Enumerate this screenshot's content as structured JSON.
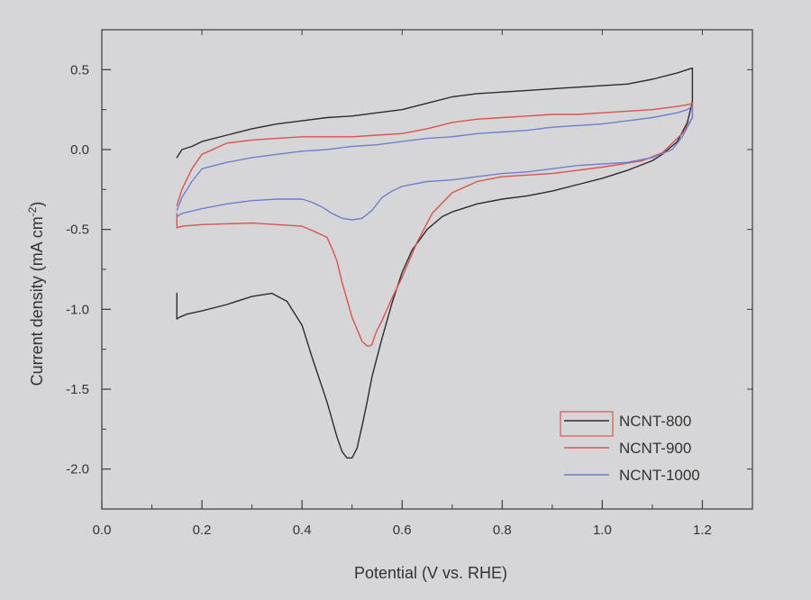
{
  "chart_data": {
    "type": "line",
    "xlabel": "Potential (V vs. RHE)",
    "ylabel": "Current density (mA cm",
    "ylabel_sup": "-2",
    "ylabel_end": ")",
    "xlim": [
      0.0,
      1.3
    ],
    "ylim": [
      -2.25,
      0.75
    ],
    "xticks": [
      0.0,
      0.2,
      0.4,
      0.6,
      0.8,
      1.0,
      1.2
    ],
    "xtick_labels": [
      "0.0",
      "0.2",
      "0.4",
      "0.6",
      "0.8",
      "1.0",
      "1.2"
    ],
    "yticks": [
      0.5,
      0.0,
      -0.5,
      -1.0,
      -1.5,
      -2.0
    ],
    "ytick_labels": [
      "0.5",
      "0.0",
      "-0.5",
      "-1.0",
      "-1.5",
      "-2.0"
    ],
    "grid": false,
    "legend_position": "bottom-right",
    "series": [
      {
        "name": "NCNT-800",
        "color": "#2b2b2b",
        "x": [
          0.15,
          0.16,
          0.18,
          0.2,
          0.25,
          0.3,
          0.35,
          0.4,
          0.45,
          0.5,
          0.55,
          0.6,
          0.65,
          0.7,
          0.75,
          0.8,
          0.85,
          0.9,
          0.95,
          1.0,
          1.05,
          1.1,
          1.15,
          1.17,
          1.18,
          1.18,
          1.17,
          1.15,
          1.12,
          1.1,
          1.05,
          1.0,
          0.95,
          0.9,
          0.85,
          0.8,
          0.75,
          0.7,
          0.68,
          0.65,
          0.62,
          0.6,
          0.58,
          0.56,
          0.54,
          0.53,
          0.52,
          0.51,
          0.5,
          0.49,
          0.48,
          0.47,
          0.45,
          0.42,
          0.4,
          0.37,
          0.34,
          0.3,
          0.25,
          0.2,
          0.17,
          0.155,
          0.15,
          0.15
        ],
        "y": [
          -0.05,
          -0.0,
          0.02,
          0.05,
          0.09,
          0.13,
          0.16,
          0.18,
          0.2,
          0.21,
          0.23,
          0.25,
          0.29,
          0.33,
          0.35,
          0.36,
          0.37,
          0.38,
          0.39,
          0.4,
          0.41,
          0.44,
          0.48,
          0.5,
          0.51,
          0.3,
          0.17,
          0.05,
          -0.03,
          -0.07,
          -0.13,
          -0.18,
          -0.22,
          -0.26,
          -0.29,
          -0.31,
          -0.34,
          -0.39,
          -0.42,
          -0.5,
          -0.63,
          -0.77,
          -0.96,
          -1.18,
          -1.42,
          -1.58,
          -1.73,
          -1.87,
          -1.93,
          -1.93,
          -1.89,
          -1.8,
          -1.58,
          -1.3,
          -1.1,
          -0.95,
          -0.9,
          -0.92,
          -0.97,
          -1.01,
          -1.03,
          -1.05,
          -1.06,
          -0.9
        ]
      },
      {
        "name": "NCNT-900",
        "color": "#d9534f",
        "x": [
          0.15,
          0.16,
          0.18,
          0.2,
          0.25,
          0.3,
          0.35,
          0.4,
          0.45,
          0.5,
          0.55,
          0.6,
          0.65,
          0.7,
          0.75,
          0.8,
          0.85,
          0.9,
          0.95,
          1.0,
          1.05,
          1.1,
          1.15,
          1.17,
          1.18,
          1.18,
          1.16,
          1.12,
          1.08,
          1.0,
          0.95,
          0.9,
          0.8,
          0.75,
          0.7,
          0.66,
          0.63,
          0.6,
          0.58,
          0.56,
          0.55,
          0.545,
          0.54,
          0.535,
          0.53,
          0.52,
          0.5,
          0.48,
          0.47,
          0.46,
          0.45,
          0.43,
          0.4,
          0.3,
          0.2,
          0.16,
          0.15,
          0.15
        ],
        "y": [
          -0.35,
          -0.25,
          -0.12,
          -0.03,
          0.04,
          0.06,
          0.07,
          0.08,
          0.08,
          0.08,
          0.09,
          0.1,
          0.13,
          0.17,
          0.19,
          0.2,
          0.21,
          0.22,
          0.22,
          0.23,
          0.24,
          0.25,
          0.27,
          0.28,
          0.29,
          0.2,
          0.1,
          -0.02,
          -0.07,
          -0.11,
          -0.13,
          -0.15,
          -0.17,
          -0.2,
          -0.27,
          -0.4,
          -0.58,
          -0.8,
          -0.93,
          -1.07,
          -1.13,
          -1.17,
          -1.22,
          -1.23,
          -1.23,
          -1.2,
          -1.05,
          -0.83,
          -0.7,
          -0.62,
          -0.55,
          -0.52,
          -0.48,
          -0.46,
          -0.47,
          -0.48,
          -0.49,
          -0.4
        ]
      },
      {
        "name": "NCNT-1000",
        "color": "#6f7fd0",
        "x": [
          0.15,
          0.16,
          0.18,
          0.2,
          0.25,
          0.3,
          0.35,
          0.4,
          0.45,
          0.5,
          0.55,
          0.6,
          0.65,
          0.7,
          0.75,
          0.8,
          0.85,
          0.9,
          0.95,
          1.0,
          1.05,
          1.1,
          1.15,
          1.17,
          1.18,
          1.18,
          1.16,
          1.14,
          1.1,
          1.05,
          1.0,
          0.95,
          0.9,
          0.85,
          0.8,
          0.75,
          0.7,
          0.65,
          0.6,
          0.58,
          0.56,
          0.54,
          0.52,
          0.5,
          0.48,
          0.46,
          0.44,
          0.42,
          0.4,
          0.35,
          0.3,
          0.25,
          0.2,
          0.16,
          0.15
        ],
        "y": [
          -0.38,
          -0.3,
          -0.2,
          -0.12,
          -0.08,
          -0.05,
          -0.03,
          -0.01,
          0.0,
          0.02,
          0.03,
          0.05,
          0.07,
          0.08,
          0.1,
          0.11,
          0.12,
          0.14,
          0.15,
          0.16,
          0.18,
          0.2,
          0.23,
          0.25,
          0.27,
          0.2,
          0.08,
          0.0,
          -0.05,
          -0.08,
          -0.09,
          -0.1,
          -0.12,
          -0.14,
          -0.15,
          -0.17,
          -0.19,
          -0.2,
          -0.23,
          -0.26,
          -0.3,
          -0.38,
          -0.43,
          -0.44,
          -0.43,
          -0.4,
          -0.36,
          -0.33,
          -0.31,
          -0.31,
          -0.32,
          -0.34,
          -0.37,
          -0.4,
          -0.42
        ]
      }
    ]
  }
}
